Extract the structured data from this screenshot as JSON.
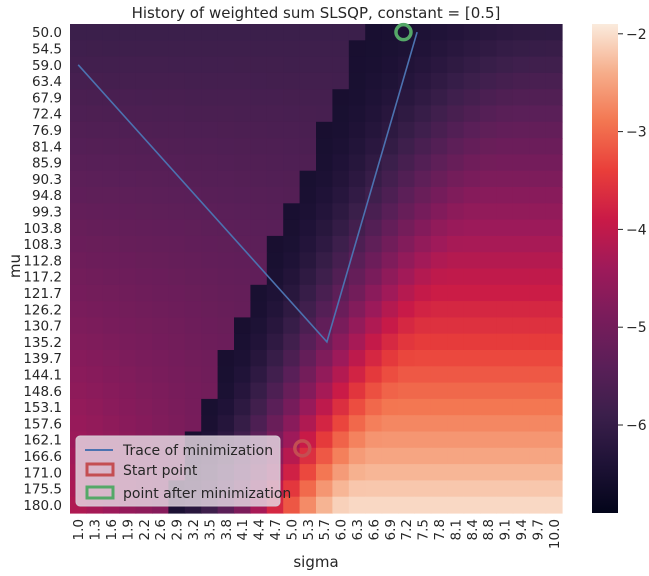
{
  "chart_data": {
    "type": "heatmap",
    "title": "History of weighted sum SLSQP, constant = [0.5]",
    "xlabel": "sigma",
    "ylabel": "mu",
    "x_ticks": [
      "1.0",
      "1.3",
      "1.6",
      "1.9",
      "2.2",
      "2.6",
      "2.9",
      "3.2",
      "3.5",
      "3.8",
      "4.1",
      "4.4",
      "4.7",
      "5.0",
      "5.3",
      "5.7",
      "6.0",
      "6.3",
      "6.6",
      "6.9",
      "7.2",
      "7.5",
      "7.8",
      "8.1",
      "8.4",
      "8.8",
      "9.1",
      "9.4",
      "9.7",
      "10.0"
    ],
    "y_ticks": [
      "50.0",
      "54.5",
      "59.0",
      "63.4",
      "67.9",
      "72.4",
      "76.9",
      "81.4",
      "85.9",
      "90.3",
      "94.8",
      "99.3",
      "103.8",
      "108.3",
      "112.8",
      "117.2",
      "121.7",
      "126.2",
      "130.7",
      "135.2",
      "139.7",
      "144.1",
      "148.6",
      "153.1",
      "157.6",
      "162.1",
      "166.6",
      "171.0",
      "175.5",
      "180.0"
    ],
    "colorbar": {
      "range": [
        -6.9,
        -1.9
      ],
      "ticks": [
        "−2",
        "−3",
        "−4",
        "−5",
        "−6"
      ]
    },
    "trace": {
      "name": "Trace of minimization",
      "sigma": [
        1.0,
        5.75,
        7.4
      ],
      "mu": [
        59.0,
        135.2,
        50.0
      ],
      "color": "#4c72b0"
    },
    "start_point": {
      "name": "Start point",
      "sigma": 5.2,
      "mu": 164.5,
      "color": "#c44e52"
    },
    "end_point": {
      "name": "point after minimization",
      "sigma": 7.15,
      "mu": 50.0,
      "color": "#55a868"
    },
    "legend": {
      "position": "lower-left"
    }
  }
}
